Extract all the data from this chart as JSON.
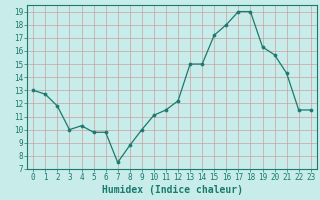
{
  "xlabel": "Humidex (Indice chaleur)",
  "x": [
    0,
    1,
    2,
    3,
    4,
    5,
    6,
    7,
    8,
    9,
    10,
    11,
    12,
    13,
    14,
    15,
    16,
    17,
    18,
    19,
    20,
    21,
    22,
    23
  ],
  "y": [
    13,
    12.7,
    11.8,
    10.0,
    10.3,
    9.8,
    9.8,
    7.5,
    8.8,
    10.0,
    11.1,
    11.5,
    12.2,
    15.0,
    15.0,
    17.2,
    18.0,
    19.0,
    19.0,
    16.3,
    15.7,
    14.3,
    11.5,
    11.5
  ],
  "line_color": "#1a7a6e",
  "marker": "o",
  "marker_size": 2.2,
  "bg_color": "#c8ece9",
  "grid_color": "#c8a0a0",
  "xlim": [
    -0.5,
    23.5
  ],
  "ylim": [
    7,
    19.5
  ],
  "yticks": [
    7,
    8,
    9,
    10,
    11,
    12,
    13,
    14,
    15,
    16,
    17,
    18,
    19
  ],
  "xticks": [
    0,
    1,
    2,
    3,
    4,
    5,
    6,
    7,
    8,
    9,
    10,
    11,
    12,
    13,
    14,
    15,
    16,
    17,
    18,
    19,
    20,
    21,
    22,
    23
  ],
  "tick_fontsize": 5.5,
  "xlabel_fontsize": 7.0
}
